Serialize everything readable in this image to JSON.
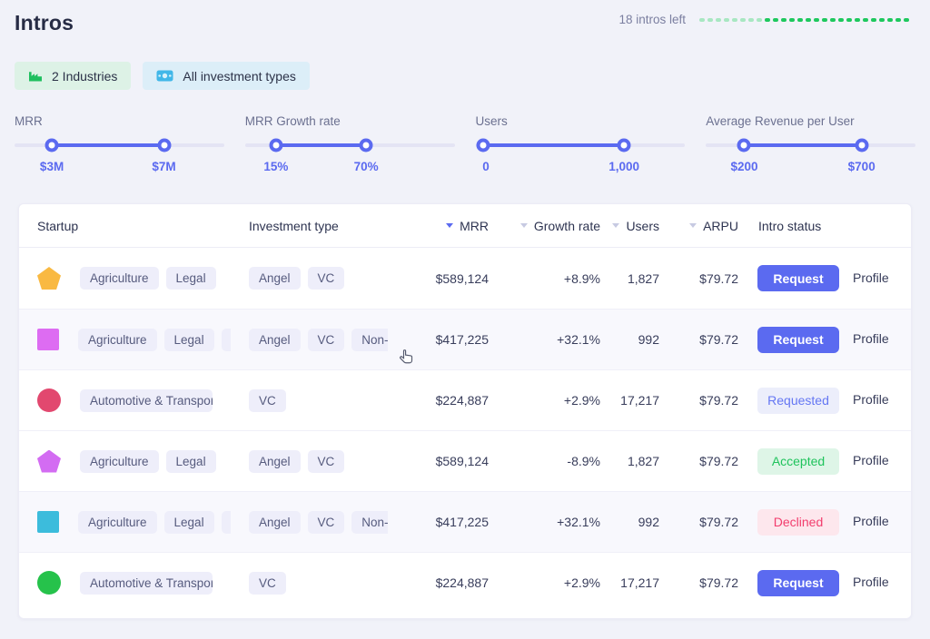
{
  "header": {
    "title": "Intros",
    "intros_left_label": "18 intros left",
    "quota": {
      "total": 26,
      "remaining": 18
    }
  },
  "filters": {
    "industries_label": "2 Industries",
    "investment_label": "All investment types"
  },
  "sliders": [
    {
      "label": "MRR",
      "min_label": "$3M",
      "max_label": "$7M",
      "start_pct": 17.8,
      "end_pct": 71.3
    },
    {
      "label": "MRR Growth rate",
      "min_label": "15%",
      "max_label": "70%",
      "start_pct": 14.8,
      "end_pct": 57.8
    },
    {
      "label": "Users",
      "min_label": "0",
      "max_label": "1,000",
      "start_pct": 3.5,
      "end_pct": 70.9
    },
    {
      "label": "Average Revenue per User",
      "min_label": "$200",
      "max_label": "$700",
      "start_pct": 18.3,
      "end_pct": 74.3
    }
  ],
  "table": {
    "columns": [
      {
        "label": "Startup"
      },
      {
        "label": "Investment type"
      },
      {
        "label": "MRR",
        "sortable": true,
        "sorted": true
      },
      {
        "label": "Growth rate",
        "sortable": true
      },
      {
        "label": "Users",
        "sortable": true
      },
      {
        "label": "ARPU",
        "sortable": true
      },
      {
        "label": "Intro status"
      }
    ],
    "profile_label": "Profile",
    "rows": [
      {
        "shape": {
          "type": "pentagon",
          "color": "#f9b942"
        },
        "industries": [
          "Agriculture",
          "Legal"
        ],
        "investment_types": [
          "Angel",
          "VC"
        ],
        "mrr": "$589,124",
        "growth": "+8.9%",
        "users": "1,827",
        "arpu": "$79.72",
        "status": {
          "label": "Request",
          "kind": "request"
        },
        "tinted": false
      },
      {
        "shape": {
          "type": "square",
          "color": "#dd6cf2"
        },
        "industries": [
          "Agriculture",
          "Legal",
          "C"
        ],
        "investment_types": [
          "Angel",
          "VC",
          "Non-"
        ],
        "mrr": "$417,225",
        "growth": "+32.1%",
        "users": "992",
        "arpu": "$79.72",
        "status": {
          "label": "Request",
          "kind": "request"
        },
        "tinted": true
      },
      {
        "shape": {
          "type": "circle",
          "color": "#e2486f"
        },
        "industries": [
          "Automotive & Transport"
        ],
        "investment_types": [
          "VC"
        ],
        "mrr": "$224,887",
        "growth": "+2.9%",
        "users": "17,217",
        "arpu": "$79.72",
        "status": {
          "label": "Requested",
          "kind": "requested"
        },
        "tinted": false
      },
      {
        "shape": {
          "type": "pentagon",
          "color": "#d36cf2"
        },
        "industries": [
          "Agriculture",
          "Legal"
        ],
        "investment_types": [
          "Angel",
          "VC"
        ],
        "mrr": "$589,124",
        "growth": "-8.9%",
        "users": "1,827",
        "arpu": "$79.72",
        "status": {
          "label": "Accepted",
          "kind": "accepted"
        },
        "tinted": false
      },
      {
        "shape": {
          "type": "square",
          "color": "#3cbcdc"
        },
        "industries": [
          "Agriculture",
          "Legal",
          "C"
        ],
        "investment_types": [
          "Angel",
          "VC",
          "Non-"
        ],
        "mrr": "$417,225",
        "growth": "+32.1%",
        "users": "992",
        "arpu": "$79.72",
        "status": {
          "label": "Declined",
          "kind": "declined"
        },
        "tinted": true
      },
      {
        "shape": {
          "type": "circle",
          "color": "#26c24b"
        },
        "industries": [
          "Automotive & Transport"
        ],
        "investment_types": [
          "VC"
        ],
        "mrr": "$224,887",
        "growth": "+2.9%",
        "users": "17,217",
        "arpu": "$79.72",
        "status": {
          "label": "Request",
          "kind": "request"
        },
        "tinted": false
      }
    ]
  },
  "colors": {
    "accent_indigo": "#5b6af0",
    "page_background": "#f1f2f9",
    "title_text": "#272c45",
    "quota_dash_used": "#a8e7c2",
    "quota_dash_remaining": "#1ec85e",
    "chip_industries_bg": "#ddf2e6",
    "chip_industries_icon": "#1fbf5f",
    "chip_investment_bg": "#dceef8",
    "chip_investment_icon": "#41b7e8",
    "tag_bg": "#eeeefa",
    "tag_text": "#565b7e",
    "badge_requested_text": "#6577f3",
    "badge_accepted_text": "#1fc35c",
    "badge_declined_text": "#f23d6d"
  }
}
